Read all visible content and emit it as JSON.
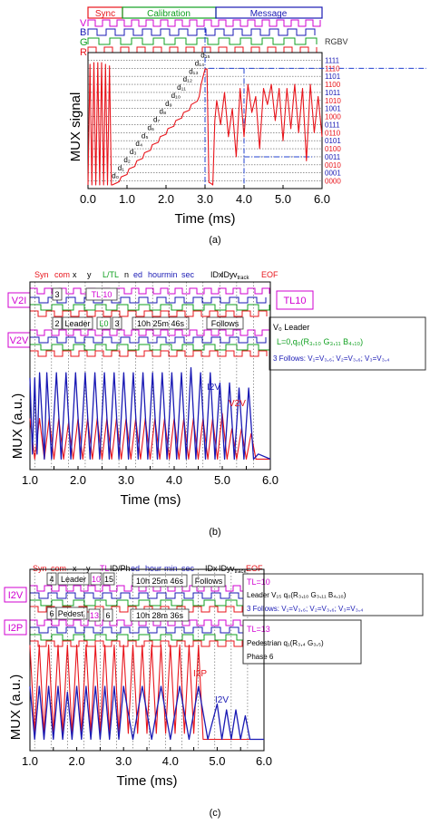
{
  "colors": {
    "red": "#e8141b",
    "blue": "#1a1ab4",
    "green": "#10a020",
    "magenta": "#d200d2",
    "dash": "#2040d0"
  },
  "chart_data": [
    {
      "type": "line",
      "panel_label": "(a)",
      "xlabel": "Time (ms)",
      "ylabel": "MUX signal",
      "xlim": [
        0.0,
        6.0
      ],
      "xticks": [
        "0.0",
        "1.0",
        "2.0",
        "3.0",
        "4.0",
        "5.0",
        "6.0"
      ],
      "segments": [
        "Sync",
        "Calibration",
        "Message"
      ],
      "channels": [
        "V",
        "B",
        "G",
        "R"
      ],
      "rgbv_header": "RGBV",
      "levels": [
        "0000",
        "0001",
        "0010",
        "0011",
        "0100",
        "0101",
        "0110",
        "0111",
        "1000",
        "1001",
        "1010",
        "1011",
        "1100",
        "1101",
        "1110",
        "1111"
      ],
      "step_labels": [
        "d₀",
        "d₁",
        "d₂",
        "d₃",
        "d₄",
        "d₅",
        "d₆",
        "d₇",
        "d₈",
        "d₉",
        "d₁₀",
        "d₁₁",
        "d₁₂",
        "d₁₃",
        "d₁₄",
        "d₁₅"
      ],
      "series": [
        {
          "color": "red",
          "x": [
            0.0,
            0.05,
            0.1,
            0.15,
            0.2,
            0.25,
            0.3,
            0.35,
            0.4,
            0.45,
            0.5,
            0.55,
            0.6,
            0.62,
            0.8,
            0.85,
            1.0,
            1.05,
            1.2,
            1.25,
            1.4,
            1.45,
            1.6,
            1.65,
            1.8,
            1.85,
            2.0,
            2.05,
            2.2,
            2.25,
            2.4,
            2.45,
            2.6,
            2.65,
            2.8,
            2.85,
            2.9,
            3.0,
            3.05,
            3.1,
            3.15,
            3.2,
            3.25,
            3.3,
            3.4,
            3.5,
            3.6,
            3.7,
            3.8,
            3.9,
            4.0,
            4.1,
            4.2,
            4.3,
            4.4,
            4.5,
            4.6,
            4.7,
            4.8,
            4.9,
            5.0,
            5.1,
            5.2,
            5.3,
            5.4,
            5.5,
            5.6,
            5.7,
            5.8,
            5.9,
            6.0
          ],
          "y": [
            0.0,
            15.0,
            0.0,
            15.2,
            0.0,
            15.2,
            0.0,
            15.2,
            0.0,
            15.0,
            0.0,
            14.8,
            0.0,
            0.0,
            0.4,
            1.0,
            1.3,
            2.0,
            2.3,
            3.0,
            3.3,
            4.0,
            4.3,
            5.0,
            5.3,
            6.0,
            6.3,
            7.0,
            7.3,
            8.0,
            8.3,
            9.0,
            9.3,
            10.0,
            10.4,
            11.0,
            12.5,
            14.4,
            14.4,
            0.3,
            0.2,
            0.0,
            8.0,
            10.5,
            7.5,
            11.5,
            6.0,
            9.5,
            3.5,
            12.0,
            6.0,
            12.5,
            9.0,
            11.0,
            4.5,
            12.0,
            10.0,
            12.5,
            8.0,
            12.0,
            5.5,
            12.0,
            7.0,
            12.5,
            6.5,
            12.0,
            3.0,
            12.5,
            6.5,
            11.0,
            6.0
          ]
        }
      ]
    },
    {
      "type": "line",
      "panel_label": "(b)",
      "xlabel": "Time (ms)",
      "ylabel": "MUX (a.u.)",
      "xlim": [
        1.0,
        6.0
      ],
      "xticks": [
        "1.0",
        "1.5",
        "2.0",
        "2.5",
        "3.0",
        "3.5",
        "4.0",
        "4.5",
        "5.0",
        "5.5",
        "6.0"
      ],
      "top_labels": [
        "Syn",
        "com",
        "x",
        "y",
        "L/TL",
        "n",
        "ed",
        "hour",
        "min",
        "sec",
        "IDx",
        "IDy",
        "v",
        "EOF"
      ],
      "top_label_sub": "track",
      "row_labels": [
        "V2I",
        "V2V"
      ],
      "box_labels": [
        "3",
        "TL 10",
        "2",
        "Leader",
        "L0",
        "3",
        "10h 25m 46s",
        "Follows"
      ],
      "tag_TL": "TL10",
      "info": {
        "line1": "V₀ Leader",
        "line2": "L=0,q₀(R₃,₁₀ G₃,₁₁ B₄,₁₀)",
        "line3": "3 Follows: V₁=V₃,₆; V₂=V₃,₆; V₃=V₃,₄"
      },
      "series": [
        {
          "name": "I2V",
          "color": "blue",
          "x": [
            1.0,
            1.05,
            1.1,
            1.15,
            1.2,
            1.3,
            1.35,
            1.45,
            1.55,
            1.65,
            1.75,
            1.85,
            1.95,
            2.05,
            2.15,
            2.25,
            2.35,
            2.45,
            2.55,
            2.65,
            2.75,
            2.85,
            2.95,
            3.05,
            3.15,
            3.25,
            3.35,
            3.45,
            3.55,
            3.65,
            3.75,
            3.85,
            3.95,
            4.05,
            4.15,
            4.25,
            4.35,
            4.45,
            4.55,
            4.65,
            4.75,
            4.85,
            4.95,
            5.05,
            5.15,
            5.25,
            5.35,
            5.45,
            5.55,
            5.65,
            5.75,
            6.0
          ],
          "y": [
            0.85,
            0.1,
            0.85,
            0.1,
            0.9,
            0.05,
            0.9,
            0.05,
            0.9,
            0.05,
            0.9,
            0.05,
            0.9,
            0.05,
            0.9,
            0.05,
            0.9,
            0.05,
            0.9,
            0.05,
            0.9,
            0.05,
            0.9,
            0.05,
            0.9,
            0.05,
            0.9,
            0.05,
            0.9,
            0.05,
            0.9,
            0.05,
            0.9,
            0.05,
            0.9,
            0.05,
            0.95,
            0.05,
            0.9,
            0.05,
            0.9,
            0.05,
            0.8,
            0.05,
            0.8,
            0.05,
            0.75,
            0.05,
            0.75,
            0.05,
            0.1,
            0.05
          ]
        },
        {
          "name": "V2V",
          "color": "red",
          "x": [
            1.0,
            1.1,
            1.2,
            1.3,
            1.4,
            1.5,
            1.6,
            1.7,
            1.8,
            1.9,
            2.0,
            2.1,
            2.2,
            2.3,
            2.4,
            2.5,
            2.6,
            2.7,
            2.8,
            2.9,
            3.0,
            3.1,
            3.2,
            3.3,
            3.4,
            3.5,
            3.6,
            3.7,
            3.8,
            3.9,
            4.0,
            4.1,
            4.2,
            4.3,
            4.4,
            4.5,
            4.6,
            4.7,
            4.8,
            4.9,
            5.0,
            5.1,
            5.2,
            5.3,
            5.4,
            5.5,
            5.6,
            5.7,
            6.0
          ],
          "y": [
            0.45,
            0.05,
            0.45,
            0.05,
            0.45,
            0.05,
            0.45,
            0.05,
            0.4,
            0.05,
            0.45,
            0.05,
            0.45,
            0.05,
            0.45,
            0.05,
            0.45,
            0.05,
            0.45,
            0.05,
            0.45,
            0.05,
            0.45,
            0.05,
            0.45,
            0.05,
            0.45,
            0.05,
            0.45,
            0.05,
            0.45,
            0.05,
            0.45,
            0.05,
            0.45,
            0.05,
            0.45,
            0.05,
            0.45,
            0.05,
            0.5,
            0.05,
            0.35,
            0.05,
            0.35,
            0.05,
            0.3,
            0.05,
            0.05
          ]
        }
      ]
    },
    {
      "type": "line",
      "panel_label": "(c)",
      "xlabel": "Time (ms)",
      "ylabel": "MUX (a.u.)",
      "xlim": [
        1.0,
        6.0
      ],
      "xticks": [
        "1.0",
        "1.5",
        "2.0",
        "2.5",
        "3.0",
        "3.5",
        "4.0",
        "4.5",
        "5.0",
        "5.5",
        "6.0"
      ],
      "top_labels": [
        "Syn",
        "com",
        "x",
        "y",
        "TL",
        "ID/Ph",
        "ed",
        "hour",
        "min",
        "sec",
        "IDx",
        "IDy",
        "v",
        "EOF"
      ],
      "top_label_sub": "track",
      "row_labels": [
        "I2V",
        "I2P"
      ],
      "box_labels": [
        "4",
        "Leader",
        "10",
        "15",
        "10h 25m 46s",
        "Follows",
        "6",
        "Pedest.",
        "13",
        "6",
        "10h 28m 36s"
      ],
      "info1": {
        "line1": "TL=10",
        "line2": "Leader V₁₅ q₀(R₃,₁₀ G₃,₁₁ B₄,₁₀)",
        "line3": "3 Follows: V₁=V₃,₆; V₂=V₃,₆; V₃=V₃,₄"
      },
      "info2": {
        "line1": "TL=13",
        "line2": "Pedestrian q₁(R₃,₄ G₃,₅)",
        "line3": "Phase 6"
      },
      "series": [
        {
          "name": "I2P",
          "color": "red",
          "x": [
            1.0,
            1.1,
            1.2,
            1.3,
            1.4,
            1.5,
            1.6,
            1.7,
            1.8,
            1.9,
            2.0,
            2.1,
            2.2,
            2.3,
            2.4,
            2.5,
            2.6,
            2.7,
            2.8,
            2.9,
            3.0,
            3.1,
            3.2,
            3.3,
            3.4,
            3.5,
            3.6,
            3.7,
            3.8,
            3.9,
            4.0,
            4.1,
            4.2,
            4.3,
            4.4,
            4.5,
            4.6,
            4.7,
            6.0
          ],
          "y": [
            0.85,
            0.1,
            0.85,
            0.1,
            0.85,
            0.1,
            0.85,
            0.1,
            0.85,
            0.1,
            0.85,
            0.1,
            0.85,
            0.1,
            0.85,
            0.1,
            0.85,
            0.1,
            0.85,
            0.1,
            0.85,
            0.1,
            0.85,
            0.1,
            0.85,
            0.1,
            0.85,
            0.1,
            0.85,
            0.1,
            0.85,
            0.1,
            0.85,
            0.1,
            0.85,
            0.1,
            0.85,
            0.05,
            0.05
          ]
        },
        {
          "name": "I2V",
          "color": "blue",
          "x": [
            1.0,
            1.1,
            1.2,
            1.3,
            1.4,
            1.5,
            1.6,
            1.7,
            1.8,
            1.9,
            2.0,
            2.1,
            2.2,
            2.3,
            2.4,
            2.5,
            2.6,
            2.7,
            2.8,
            2.9,
            3.0,
            3.2,
            3.4,
            3.6,
            3.8,
            4.0,
            4.2,
            4.4,
            4.6,
            4.8,
            5.0,
            5.1,
            5.2,
            5.3,
            5.4,
            5.5,
            5.6,
            5.7,
            5.8,
            6.0
          ],
          "y": [
            0.5,
            0.05,
            0.5,
            0.05,
            0.5,
            0.05,
            0.5,
            0.05,
            0.45,
            0.05,
            0.5,
            0.05,
            0.5,
            0.05,
            0.5,
            0.05,
            0.5,
            0.05,
            0.5,
            0.05,
            0.5,
            0.05,
            0.5,
            0.05,
            0.5,
            0.05,
            0.5,
            0.05,
            0.5,
            0.05,
            0.35,
            0.05,
            0.3,
            0.05,
            0.3,
            0.05,
            0.25,
            0.05,
            0.05,
            0.05
          ]
        }
      ]
    }
  ]
}
